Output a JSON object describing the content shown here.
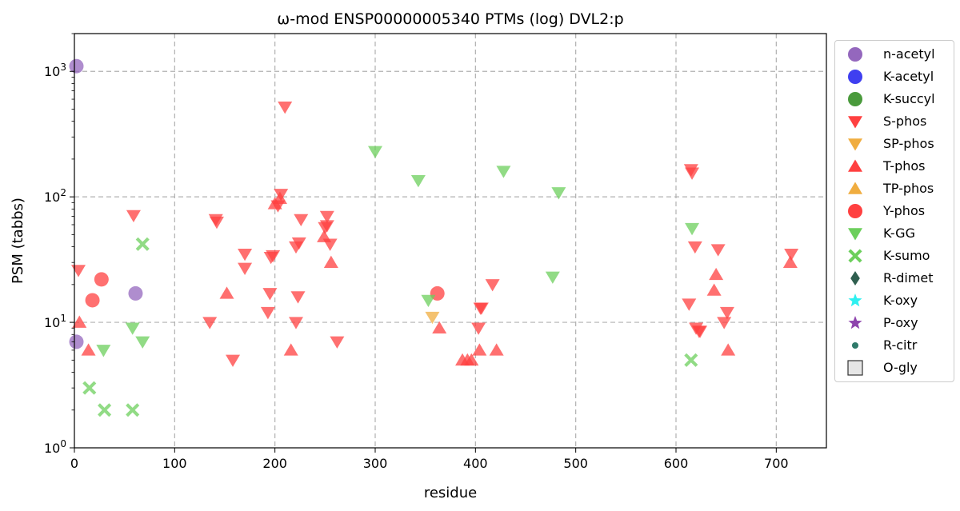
{
  "chart_data": {
    "type": "scatter",
    "title": "ω-mod ENSP00000005340 PTMs (log) DVL2:p",
    "xlabel": "residue",
    "ylabel": "PSM (tabbs)",
    "xlim": [
      0,
      750
    ],
    "ylim": [
      1,
      2000
    ],
    "yscale": "log",
    "x_ticks": [
      "0",
      "100",
      "200",
      "300",
      "400",
      "500",
      "600",
      "700"
    ],
    "y_ticks": [
      "10^0",
      "10^1",
      "10^2",
      "10^3"
    ],
    "grid": true,
    "legend_position": "outside-right",
    "series": [
      {
        "name": "n-acetyl",
        "marker": "circle",
        "color": "#9467bd",
        "points": [
          [
            2,
            1100
          ],
          [
            2,
            7
          ],
          [
            61,
            17
          ]
        ]
      },
      {
        "name": "K-acetyl",
        "marker": "circle",
        "color": "#3f3ff0",
        "points": []
      },
      {
        "name": "K-succyl",
        "marker": "circle",
        "color": "#4a9a3c",
        "points": []
      },
      {
        "name": "S-phos",
        "marker": "triangle-down",
        "color": "#ff4040",
        "points": [
          [
            4,
            26
          ],
          [
            59,
            71
          ],
          [
            141,
            66
          ],
          [
            142,
            63
          ],
          [
            170,
            35
          ],
          [
            170,
            27
          ],
          [
            158,
            5
          ],
          [
            135,
            10
          ],
          [
            193,
            12
          ],
          [
            195,
            17
          ],
          [
            196,
            33
          ],
          [
            198,
            34
          ],
          [
            210,
            520
          ],
          [
            203,
            85
          ],
          [
            206,
            105
          ],
          [
            221,
            40
          ],
          [
            223,
            16
          ],
          [
            224,
            43
          ],
          [
            226,
            66
          ],
          [
            221,
            10
          ],
          [
            252,
            70
          ],
          [
            252,
            59
          ],
          [
            250,
            57
          ],
          [
            255,
            42
          ],
          [
            262,
            7
          ],
          [
            405,
            13
          ],
          [
            406,
            13
          ],
          [
            417,
            20
          ],
          [
            403,
            9
          ],
          [
            615,
            165
          ],
          [
            616,
            155
          ],
          [
            619,
            40
          ],
          [
            613,
            14
          ],
          [
            620,
            9
          ],
          [
            623,
            8.5
          ],
          [
            624,
            8.5
          ],
          [
            642,
            38
          ],
          [
            651,
            12
          ],
          [
            648,
            10
          ],
          [
            715,
            35
          ]
        ]
      },
      {
        "name": "SP-phos",
        "marker": "triangle-down",
        "color": "#f0ad40",
        "points": [
          [
            357,
            11
          ]
        ]
      },
      {
        "name": "T-phos",
        "marker": "triangle-up",
        "color": "#ff4040",
        "points": [
          [
            5,
            10
          ],
          [
            14,
            6
          ],
          [
            152,
            17
          ],
          [
            200,
            88
          ],
          [
            205,
            97
          ],
          [
            216,
            6
          ],
          [
            249,
            48
          ],
          [
            256,
            30
          ],
          [
            364,
            9
          ],
          [
            387,
            5
          ],
          [
            392,
            5
          ],
          [
            396,
            5
          ],
          [
            404,
            6
          ],
          [
            421,
            6
          ],
          [
            638,
            18
          ],
          [
            640,
            24
          ],
          [
            652,
            6
          ],
          [
            714,
            30
          ]
        ]
      },
      {
        "name": "TP-phos",
        "marker": "triangle-up",
        "color": "#f0ad40",
        "points": []
      },
      {
        "name": "Y-phos",
        "marker": "circle",
        "color": "#ff4040",
        "points": [
          [
            18,
            15
          ],
          [
            27,
            22
          ],
          [
            362,
            17
          ]
        ]
      },
      {
        "name": "K-GG",
        "marker": "triangle-down",
        "color": "#6ccf5c",
        "points": [
          [
            29,
            6
          ],
          [
            58,
            9
          ],
          [
            68,
            7
          ],
          [
            300,
            230
          ],
          [
            343,
            135
          ],
          [
            353,
            15
          ],
          [
            428,
            160
          ],
          [
            477,
            23
          ],
          [
            483,
            108
          ],
          [
            616,
            56
          ]
        ]
      },
      {
        "name": "K-sumo",
        "marker": "x",
        "color": "#6ccf5c",
        "points": [
          [
            15,
            3
          ],
          [
            30,
            2
          ],
          [
            58,
            2
          ],
          [
            68,
            42
          ],
          [
            615,
            5
          ]
        ]
      },
      {
        "name": "R-dimet",
        "marker": "diamond",
        "color": "#2f5f4f",
        "points": []
      },
      {
        "name": "K-oxy",
        "marker": "star",
        "color": "#2ef0f0",
        "points": []
      },
      {
        "name": "P-oxy",
        "marker": "star",
        "color": "#8e44ad",
        "points": []
      },
      {
        "name": "R-citr",
        "marker": "small-circle",
        "color": "#2f7a6a",
        "points": []
      },
      {
        "name": "O-gly",
        "marker": "square",
        "color": "#555555",
        "points": []
      }
    ]
  }
}
